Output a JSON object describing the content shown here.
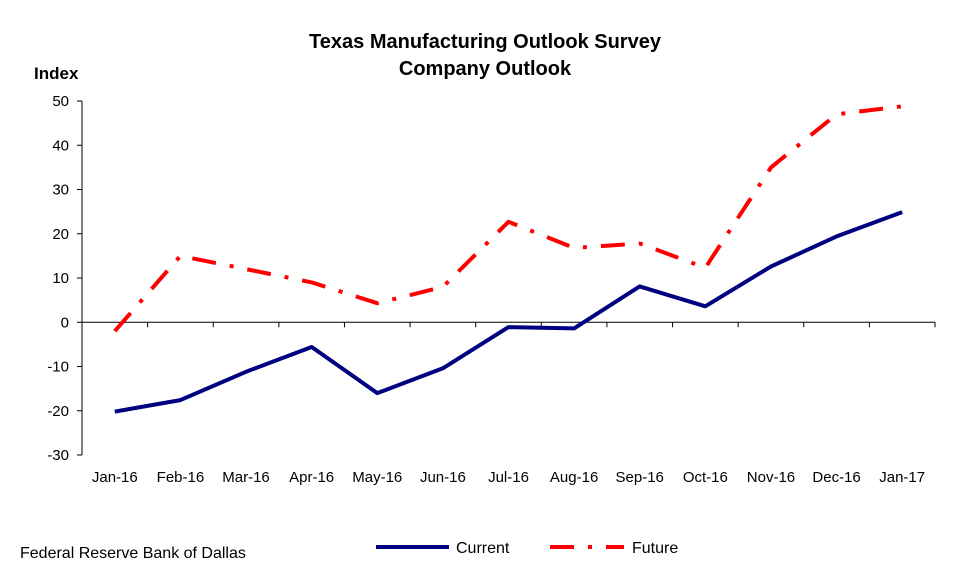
{
  "chart_data": {
    "type": "line",
    "title": "Texas Manufacturing Outlook Survey",
    "subtitle": "Company Outlook",
    "ylabel": "Index",
    "xlabel": "",
    "categories": [
      "Jan-16",
      "Feb-16",
      "Mar-16",
      "Apr-16",
      "May-16",
      "Jun-16",
      "Jul-16",
      "Aug-16",
      "Sep-16",
      "Oct-16",
      "Nov-16",
      "Dec-16",
      "Jan-17"
    ],
    "ylim": [
      -30,
      50
    ],
    "yticks": [
      50,
      40,
      30,
      20,
      10,
      0,
      -10,
      -20,
      -30
    ],
    "grid": false,
    "legend_position": "bottom",
    "series": [
      {
        "name": "Current",
        "color": "#000080",
        "style": "solid",
        "values": [
          -20.2,
          -17.6,
          -11.2,
          -5.6,
          -16.0,
          -10.4,
          -1.1,
          -1.4,
          8.1,
          3.6,
          12.6,
          19.4,
          24.9
        ]
      },
      {
        "name": "Future",
        "color": "#ff0000",
        "style": "dash-dot",
        "values": [
          -2.0,
          15.0,
          12.0,
          9.0,
          4.3,
          8.0,
          22.7,
          16.8,
          17.8,
          12.3,
          35.0,
          47.0,
          48.8
        ]
      }
    ]
  },
  "source": "Federal Reserve Bank of Dallas"
}
